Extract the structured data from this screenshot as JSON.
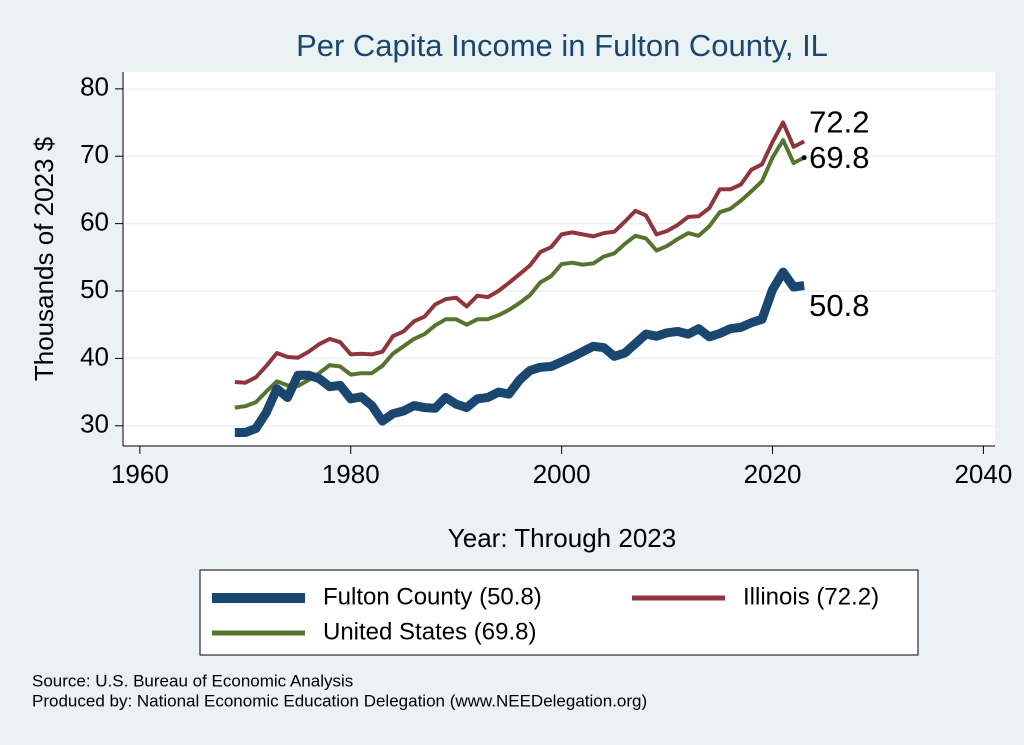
{
  "chart_data": {
    "type": "line",
    "title": "Per Capita Income in Fulton County, IL",
    "y_label": "Thousands of 2023 $",
    "x_label": "Year: Through 2023",
    "x": [
      1969,
      1970,
      1971,
      1972,
      1973,
      1974,
      1975,
      1976,
      1977,
      1978,
      1979,
      1980,
      1981,
      1982,
      1983,
      1984,
      1985,
      1986,
      1987,
      1988,
      1989,
      1990,
      1991,
      1992,
      1993,
      1994,
      1995,
      1996,
      1997,
      1998,
      1999,
      2000,
      2001,
      2002,
      2003,
      2004,
      2005,
      2006,
      2007,
      2008,
      2009,
      2010,
      2011,
      2012,
      2013,
      2014,
      2015,
      2016,
      2017,
      2018,
      2019,
      2020,
      2021,
      2022,
      2023
    ],
    "series": [
      {
        "name": "Fulton County (50.8)",
        "color": "#1a476f",
        "values": [
          29,
          29,
          29.6,
          32,
          35.5,
          34.2,
          37.5,
          37.5,
          37,
          35.8,
          36,
          34,
          34.3,
          33,
          30.7,
          31.8,
          32.2,
          33,
          32.7,
          32.6,
          34.2,
          33.2,
          32.7,
          34,
          34.2,
          35,
          34.7,
          36.8,
          38.2,
          38.7,
          38.8,
          39.5,
          40.2,
          41,
          41.8,
          41.6,
          40.3,
          40.8,
          42.2,
          43.6,
          43.3,
          43.8,
          44,
          43.6,
          44.4,
          43.2,
          43.7,
          44.4,
          44.6,
          45.3,
          45.8,
          50.2,
          52.8,
          50.6,
          50.8
        ]
      },
      {
        "name": "Illinois (72.2)",
        "color": "#90353b",
        "values": [
          36.5,
          36.4,
          37.2,
          38.9,
          40.8,
          40.2,
          40.1,
          41,
          42.1,
          42.9,
          42.4,
          40.6,
          40.7,
          40.6,
          41,
          43.3,
          44,
          45.5,
          46.2,
          48,
          48.8,
          49,
          47.7,
          49.3,
          49.1,
          50,
          51.2,
          52.5,
          53.8,
          55.8,
          56.5,
          58.4,
          58.7,
          58.4,
          58.1,
          58.6,
          58.8,
          60.3,
          61.9,
          61.2,
          58.4,
          58.9,
          59.8,
          61,
          61.1,
          62.3,
          65.1,
          65.1,
          65.8,
          68,
          68.8,
          72.1,
          75,
          71.4,
          72.2
        ]
      },
      {
        "name": "United States (69.8)",
        "color": "#55752f",
        "values": [
          32.7,
          32.9,
          33.5,
          35.1,
          36.6,
          36,
          35.9,
          36.8,
          37.8,
          39,
          38.8,
          37.6,
          37.8,
          37.8,
          38.9,
          40.7,
          41.8,
          42.9,
          43.6,
          44.9,
          45.8,
          45.8,
          45,
          45.8,
          45.8,
          46.4,
          47.2,
          48.2,
          49.4,
          51.3,
          52.2,
          54,
          54.2,
          53.9,
          54.1,
          55.1,
          55.6,
          57,
          58.2,
          57.8,
          56,
          56.7,
          57.7,
          58.6,
          58.2,
          59.6,
          61.7,
          62.2,
          63.4,
          64.8,
          66.3,
          69.8,
          72.4,
          69,
          69.8
        ]
      }
    ],
    "xlim": [
      1958.4,
      2041.1
    ],
    "xticks": [
      1960,
      1980,
      2000,
      2020,
      2040
    ],
    "ylim": [
      27,
      82.5
    ],
    "yticks": [
      30,
      40,
      50,
      60,
      70,
      80
    ],
    "grid": true,
    "notes": [
      "Source: U.S. Bureau of Economic Analysis",
      "Produced by: National Economic Education Delegation (www.NEEDelegation.org)"
    ]
  }
}
